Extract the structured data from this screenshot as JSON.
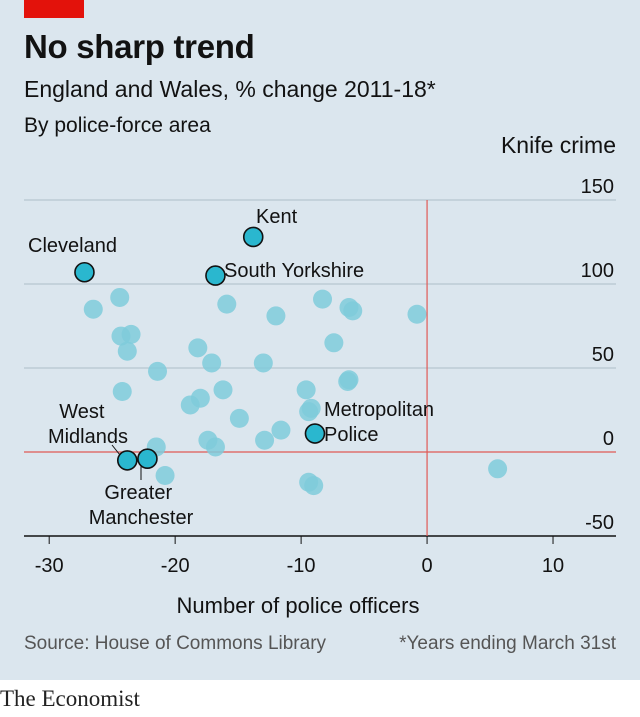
{
  "header": {
    "title": "No sharp trend",
    "subtitle": "England and Wales, % change 2011-18*",
    "subtitle2": "By police-force area"
  },
  "footer": {
    "source": "Source: House of Commons Library",
    "footnote": "*Years ending March 31st",
    "brand": "The Economist"
  },
  "colors": {
    "accent": "#e3120b",
    "panel": "#dbe6ee",
    "point_light": "#7fcbdb",
    "point_highlight": "#2ab7cf",
    "grid": "#aebdc8",
    "zero_line": "#e05a56"
  },
  "chart_data": {
    "type": "scatter",
    "xlabel": "Number of police officers",
    "ylabel": "Knife crime",
    "xlim": [
      -32,
      15
    ],
    "ylim": [
      -50,
      150
    ],
    "xticks": [
      "-30",
      "-20",
      "-10",
      "0",
      "10"
    ],
    "yticks": [
      "150",
      "100",
      "50",
      "0",
      "-50"
    ],
    "xtick_values": [
      -30,
      -20,
      -10,
      0,
      10
    ],
    "ytick_values": [
      150,
      100,
      50,
      0,
      -50
    ],
    "grid": "horizontal",
    "highlighted": [
      {
        "label": "Kent",
        "x": -13.8,
        "y": 128
      },
      {
        "label": "Cleveland",
        "x": -27.2,
        "y": 107
      },
      {
        "label": "South Yorkshire",
        "x": -16.8,
        "y": 105
      },
      {
        "label": "Metropolitan Police",
        "x": -8.9,
        "y": 11
      },
      {
        "label": "West Midlands",
        "x": -23.8,
        "y": -5
      },
      {
        "label": "Greater Manchester",
        "x": -22.2,
        "y": -4
      }
    ],
    "points": [
      {
        "x": -26.5,
        "y": 85
      },
      {
        "x": -24.4,
        "y": 92
      },
      {
        "x": -24.3,
        "y": 69
      },
      {
        "x": -23.5,
        "y": 70
      },
      {
        "x": -23.8,
        "y": 60
      },
      {
        "x": -24.2,
        "y": 36
      },
      {
        "x": -21.4,
        "y": 48
      },
      {
        "x": -18.2,
        "y": 62
      },
      {
        "x": -17.1,
        "y": 53
      },
      {
        "x": -15.9,
        "y": 88
      },
      {
        "x": -12.0,
        "y": 81
      },
      {
        "x": -13.0,
        "y": 53
      },
      {
        "x": -16.2,
        "y": 37
      },
      {
        "x": -18.0,
        "y": 32
      },
      {
        "x": -18.8,
        "y": 28
      },
      {
        "x": -14.9,
        "y": 20
      },
      {
        "x": -17.4,
        "y": 7
      },
      {
        "x": -16.8,
        "y": 3
      },
      {
        "x": -12.9,
        "y": 7
      },
      {
        "x": -11.6,
        "y": 13
      },
      {
        "x": -9.6,
        "y": 37
      },
      {
        "x": -9.4,
        "y": 24
      },
      {
        "x": -9.2,
        "y": 26
      },
      {
        "x": -8.3,
        "y": 91
      },
      {
        "x": -7.4,
        "y": 65
      },
      {
        "x": -6.2,
        "y": 86
      },
      {
        "x": -5.9,
        "y": 84
      },
      {
        "x": -6.3,
        "y": 42
      },
      {
        "x": -6.2,
        "y": 43
      },
      {
        "x": -0.8,
        "y": 82
      },
      {
        "x": -21.5,
        "y": 3
      },
      {
        "x": -20.8,
        "y": -14
      },
      {
        "x": -9.4,
        "y": -18
      },
      {
        "x": -9.0,
        "y": -20
      },
      {
        "x": 5.6,
        "y": -10
      }
    ]
  }
}
